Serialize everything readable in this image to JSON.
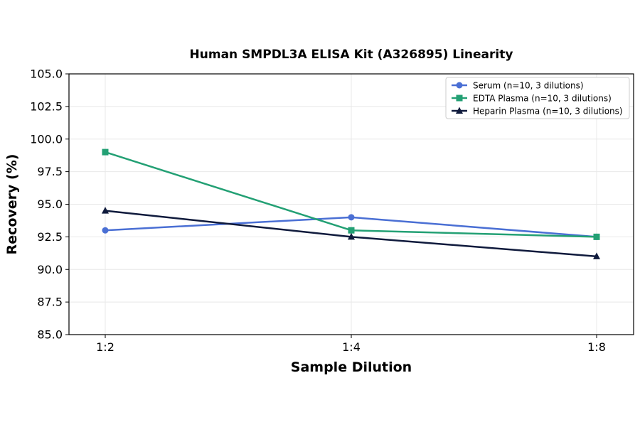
{
  "chart_data": {
    "type": "line",
    "title": "Human SMPDL3A ELISA Kit (A326895) Linearity",
    "xlabel": "Sample Dilution",
    "ylabel": "Recovery (%)",
    "categories": [
      "1:2",
      "1:4",
      "1:8"
    ],
    "ylim": [
      85.0,
      105.0
    ],
    "yticks": [
      "85.0",
      "87.5",
      "90.0",
      "92.5",
      "95.0",
      "97.5",
      "100.0",
      "102.5",
      "105.0"
    ],
    "grid": true,
    "legend_position": "top-right",
    "series": [
      {
        "name": "Serum (n=10, 3 dilutions)",
        "values": [
          93.0,
          94.0,
          92.5
        ],
        "color": "#4a6fd4",
        "marker": "circle"
      },
      {
        "name": "EDTA Plasma (n=10, 3 dilutions)",
        "values": [
          99.0,
          93.0,
          92.5
        ],
        "color": "#23a074",
        "marker": "square"
      },
      {
        "name": "Heparin Plasma (n=10, 3 dilutions)",
        "values": [
          94.5,
          92.5,
          91.0
        ],
        "color": "#0f1a3c",
        "marker": "triangle"
      }
    ]
  }
}
